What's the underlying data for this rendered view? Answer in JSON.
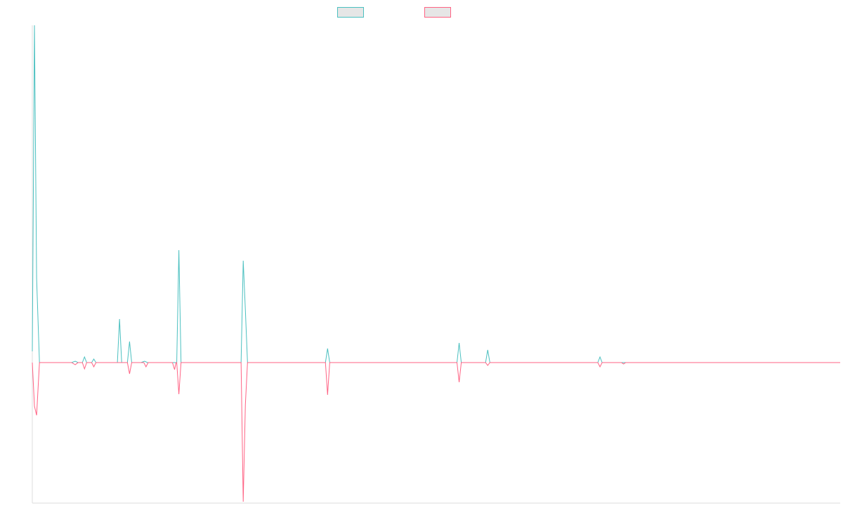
{
  "chart_data": {
    "type": "line",
    "title": "",
    "xlabel": "",
    "ylabel": "",
    "grid": false,
    "legend_position": "top-center",
    "x_axis_visible": false,
    "y_axis_visible": false,
    "ylim": [
      -200,
      480
    ],
    "x_range": [
      0,
      113
    ],
    "colors": {
      "series_a": "#4bc0c0",
      "series_b": "#ff6384",
      "axis": "#dddddd"
    },
    "series": [
      {
        "color": "#4bc0c0",
        "points": [
          [
            0,
            16
          ],
          [
            0.3,
            480
          ],
          [
            0.6,
            120
          ],
          [
            1,
            0
          ],
          [
            5.5,
            0
          ],
          [
            6,
            2
          ],
          [
            6.4,
            0
          ],
          [
            7,
            0
          ],
          [
            7.3,
            8
          ],
          [
            7.6,
            0
          ],
          [
            8.3,
            0
          ],
          [
            8.6,
            5
          ],
          [
            8.9,
            0
          ],
          [
            11.9,
            0
          ],
          [
            12.2,
            62
          ],
          [
            12.5,
            0
          ],
          [
            13.3,
            0
          ],
          [
            13.6,
            30
          ],
          [
            13.9,
            0
          ],
          [
            15.2,
            0
          ],
          [
            15.7,
            2
          ],
          [
            16.1,
            0
          ],
          [
            20.2,
            0
          ],
          [
            20.5,
            160
          ],
          [
            20.8,
            0
          ],
          [
            29.2,
            0
          ],
          [
            29.5,
            145
          ],
          [
            29.8,
            75
          ],
          [
            30.1,
            0
          ],
          [
            41,
            0
          ],
          [
            41.3,
            20
          ],
          [
            41.6,
            0
          ],
          [
            59.4,
            0
          ],
          [
            59.7,
            28
          ],
          [
            60,
            0
          ],
          [
            63.4,
            0
          ],
          [
            63.7,
            18
          ],
          [
            64,
            0
          ],
          [
            79.1,
            0
          ],
          [
            79.4,
            8
          ],
          [
            79.7,
            0
          ],
          [
            113,
            0
          ]
        ]
      },
      {
        "color": "#ff6384",
        "points": [
          [
            0,
            0
          ],
          [
            0.3,
            -62
          ],
          [
            0.6,
            -75
          ],
          [
            1,
            0
          ],
          [
            5.5,
            0
          ],
          [
            6,
            -3
          ],
          [
            6.4,
            0
          ],
          [
            7,
            0
          ],
          [
            7.3,
            -9
          ],
          [
            7.6,
            0
          ],
          [
            8.3,
            0
          ],
          [
            8.6,
            -6
          ],
          [
            8.9,
            0
          ],
          [
            13.3,
            0
          ],
          [
            13.6,
            -16
          ],
          [
            13.9,
            0
          ],
          [
            15.6,
            0
          ],
          [
            15.9,
            -6
          ],
          [
            16.2,
            0
          ],
          [
            19.6,
            0
          ],
          [
            19.9,
            -10
          ],
          [
            20.1,
            0
          ],
          [
            20.2,
            0
          ],
          [
            20.5,
            -45
          ],
          [
            20.8,
            0
          ],
          [
            29.2,
            0
          ],
          [
            29.5,
            -198
          ],
          [
            29.8,
            -60
          ],
          [
            30.1,
            0
          ],
          [
            41,
            0
          ],
          [
            41.3,
            -46
          ],
          [
            41.6,
            0
          ],
          [
            59.4,
            0
          ],
          [
            59.7,
            -28
          ],
          [
            60,
            0
          ],
          [
            63.4,
            0
          ],
          [
            63.7,
            -4
          ],
          [
            64,
            0
          ],
          [
            79.1,
            0
          ],
          [
            79.4,
            -6
          ],
          [
            79.7,
            0
          ],
          [
            82.4,
            0
          ],
          [
            82.7,
            -2
          ],
          [
            83,
            0
          ],
          [
            113,
            0
          ]
        ]
      }
    ]
  }
}
